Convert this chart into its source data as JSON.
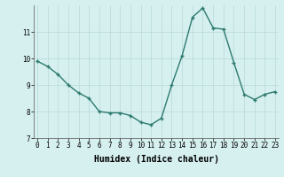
{
  "x": [
    0,
    1,
    2,
    3,
    4,
    5,
    6,
    7,
    8,
    9,
    10,
    11,
    12,
    13,
    14,
    15,
    16,
    17,
    18,
    19,
    20,
    21,
    22,
    23
  ],
  "y": [
    9.9,
    9.7,
    9.4,
    9.0,
    8.7,
    8.5,
    8.0,
    7.95,
    7.95,
    7.85,
    7.6,
    7.5,
    7.75,
    9.0,
    10.1,
    11.55,
    11.9,
    11.15,
    11.1,
    9.85,
    8.65,
    8.45,
    8.65,
    8.75
  ],
  "xlim": [
    -0.3,
    23.3
  ],
  "ylim": [
    7.0,
    12.0
  ],
  "yticks": [
    7,
    8,
    9,
    10,
    11
  ],
  "xticks": [
    0,
    1,
    2,
    3,
    4,
    5,
    6,
    7,
    8,
    9,
    10,
    11,
    12,
    13,
    14,
    15,
    16,
    17,
    18,
    19,
    20,
    21,
    22,
    23
  ],
  "xlabel": "Humidex (Indice chaleur)",
  "line_color": "#2d7a6e",
  "marker": "+",
  "marker_size": 3.5,
  "bg_color": "#d6f0f0",
  "grid_color": "#b8d8d8",
  "tick_fontsize": 5.5,
  "xlabel_fontsize": 7,
  "line_width": 1.0
}
